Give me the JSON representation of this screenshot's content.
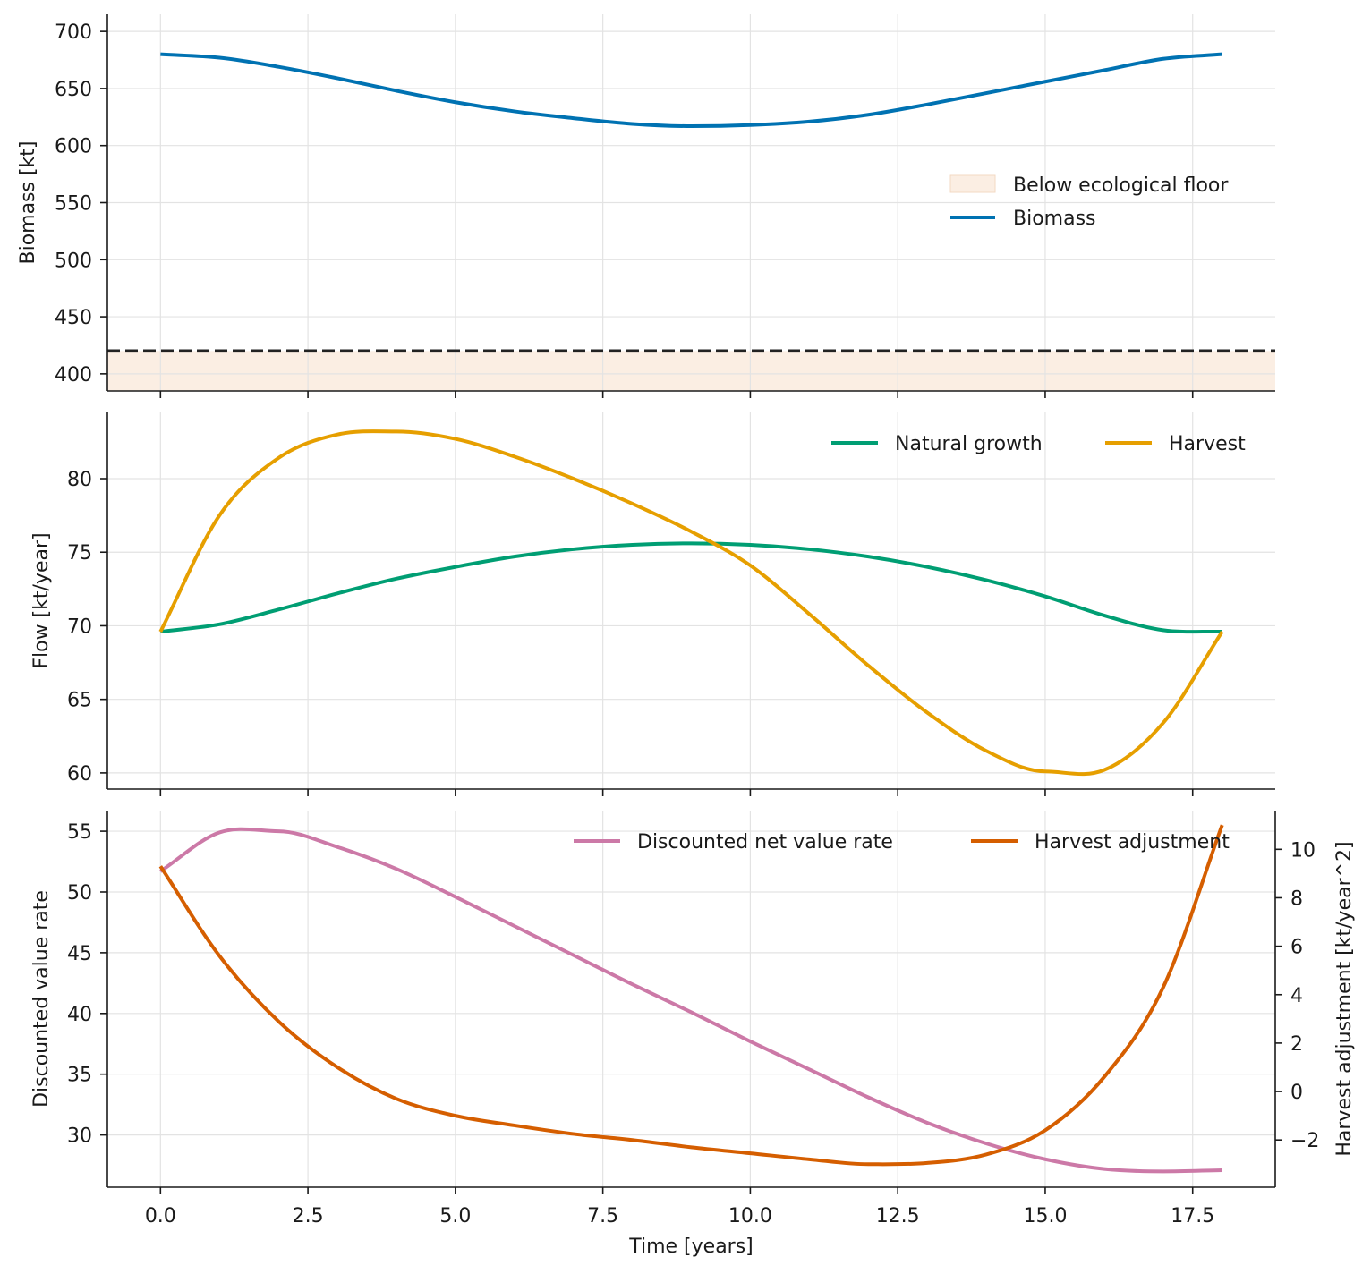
{
  "chart_data": [
    {
      "type": "line",
      "ylabel": "Biomass [kt]",
      "xlim": [
        -0.9,
        18.9
      ],
      "ylim": [
        385,
        715
      ],
      "yticks": [
        400,
        450,
        500,
        550,
        600,
        650,
        700
      ],
      "grid": true,
      "legend_position": "center-right",
      "shaded_region": {
        "label": "Below ecological floor",
        "y_from": 385,
        "y_to": 420,
        "color": "#fbeee3"
      },
      "hline": {
        "y": 420,
        "style": "dashed",
        "color": "#222222"
      },
      "series": [
        {
          "name": "Biomass",
          "color": "#0072b2",
          "x": [
            0,
            1,
            2,
            3,
            4,
            5,
            6,
            7,
            8,
            9,
            10,
            11,
            12,
            13,
            14,
            15,
            16,
            17,
            18
          ],
          "y": [
            680,
            677,
            669,
            659,
            648,
            638,
            630,
            624,
            619,
            617,
            618,
            621,
            627,
            636,
            646,
            656,
            666,
            676,
            680
          ]
        }
      ]
    },
    {
      "type": "line",
      "ylabel": "Flow [kt/year]",
      "xlim": [
        -0.9,
        18.9
      ],
      "ylim": [
        58.9,
        84.5
      ],
      "yticks": [
        60,
        65,
        70,
        75,
        80
      ],
      "grid": true,
      "legend_position": "top-right",
      "series": [
        {
          "name": "Natural growth",
          "color": "#009e73",
          "x": [
            0,
            1,
            2,
            3,
            4,
            5,
            6,
            7,
            8,
            9,
            10,
            11,
            12,
            13,
            14,
            15,
            16,
            17,
            18
          ],
          "y": [
            69.6,
            70.1,
            71.1,
            72.2,
            73.2,
            74.0,
            74.7,
            75.2,
            75.5,
            75.6,
            75.5,
            75.2,
            74.7,
            74.0,
            73.1,
            72.0,
            70.7,
            69.7,
            69.6
          ]
        },
        {
          "name": "Harvest",
          "color": "#e69f00",
          "x": [
            0,
            1,
            2,
            3,
            4,
            5,
            6,
            7,
            8,
            9,
            10,
            11,
            12,
            13,
            14,
            15,
            16,
            17,
            18
          ],
          "y": [
            69.6,
            77.5,
            81.4,
            83.0,
            83.2,
            82.7,
            81.5,
            80.0,
            78.3,
            76.4,
            74.1,
            70.8,
            67.3,
            64.1,
            61.5,
            60.1,
            60.2,
            63.4,
            69.6
          ]
        }
      ]
    },
    {
      "type": "line",
      "xlabel": "Time [years]",
      "ylabel": "Discounted value rate",
      "y2label": "Harvest adjustment [kt/year^2]",
      "xlim": [
        -0.9,
        18.9
      ],
      "xticks": [
        0.0,
        2.5,
        5.0,
        7.5,
        10.0,
        12.5,
        15.0,
        17.5
      ],
      "xticklabels": [
        "0.0",
        "2.5",
        "5.0",
        "7.5",
        "10.0",
        "12.5",
        "15.0",
        "17.5"
      ],
      "ylim": [
        25.7,
        56.7
      ],
      "yticks": [
        30,
        35,
        40,
        45,
        50,
        55
      ],
      "y2lim": [
        -3.95,
        11.6
      ],
      "y2ticks": [
        -2,
        0,
        2,
        4,
        6,
        8,
        10
      ],
      "y2ticklabels": [
        "−2",
        "0",
        "2",
        "4",
        "6",
        "8",
        "10"
      ],
      "grid": true,
      "legend_position": "top-right",
      "series": [
        {
          "name": "Discounted net value rate",
          "color": "#cc79a7",
          "axis": "left",
          "x": [
            0,
            1,
            2,
            3,
            4,
            5,
            6,
            7,
            8,
            9,
            10,
            11,
            12,
            13,
            14,
            15,
            16,
            17,
            18
          ],
          "y": [
            51.7,
            54.9,
            55.0,
            53.7,
            51.9,
            49.6,
            47.2,
            44.8,
            42.4,
            40.1,
            37.7,
            35.4,
            33.1,
            31.0,
            29.3,
            28.0,
            27.2,
            27.0,
            27.1
          ]
        },
        {
          "name": "Harvest adjustment",
          "color": "#d55e00",
          "axis": "right",
          "x": [
            0,
            1,
            2,
            3,
            4,
            5,
            6,
            7,
            8,
            9,
            10,
            11,
            12,
            13,
            14,
            15,
            16,
            17,
            18
          ],
          "y": [
            9.3,
            5.6,
            2.9,
            1.0,
            -0.3,
            -1.0,
            -1.4,
            -1.75,
            -2.0,
            -2.3,
            -2.55,
            -2.8,
            -3.0,
            -2.95,
            -2.6,
            -1.6,
            0.6,
            4.3,
            11.0
          ]
        }
      ]
    }
  ]
}
